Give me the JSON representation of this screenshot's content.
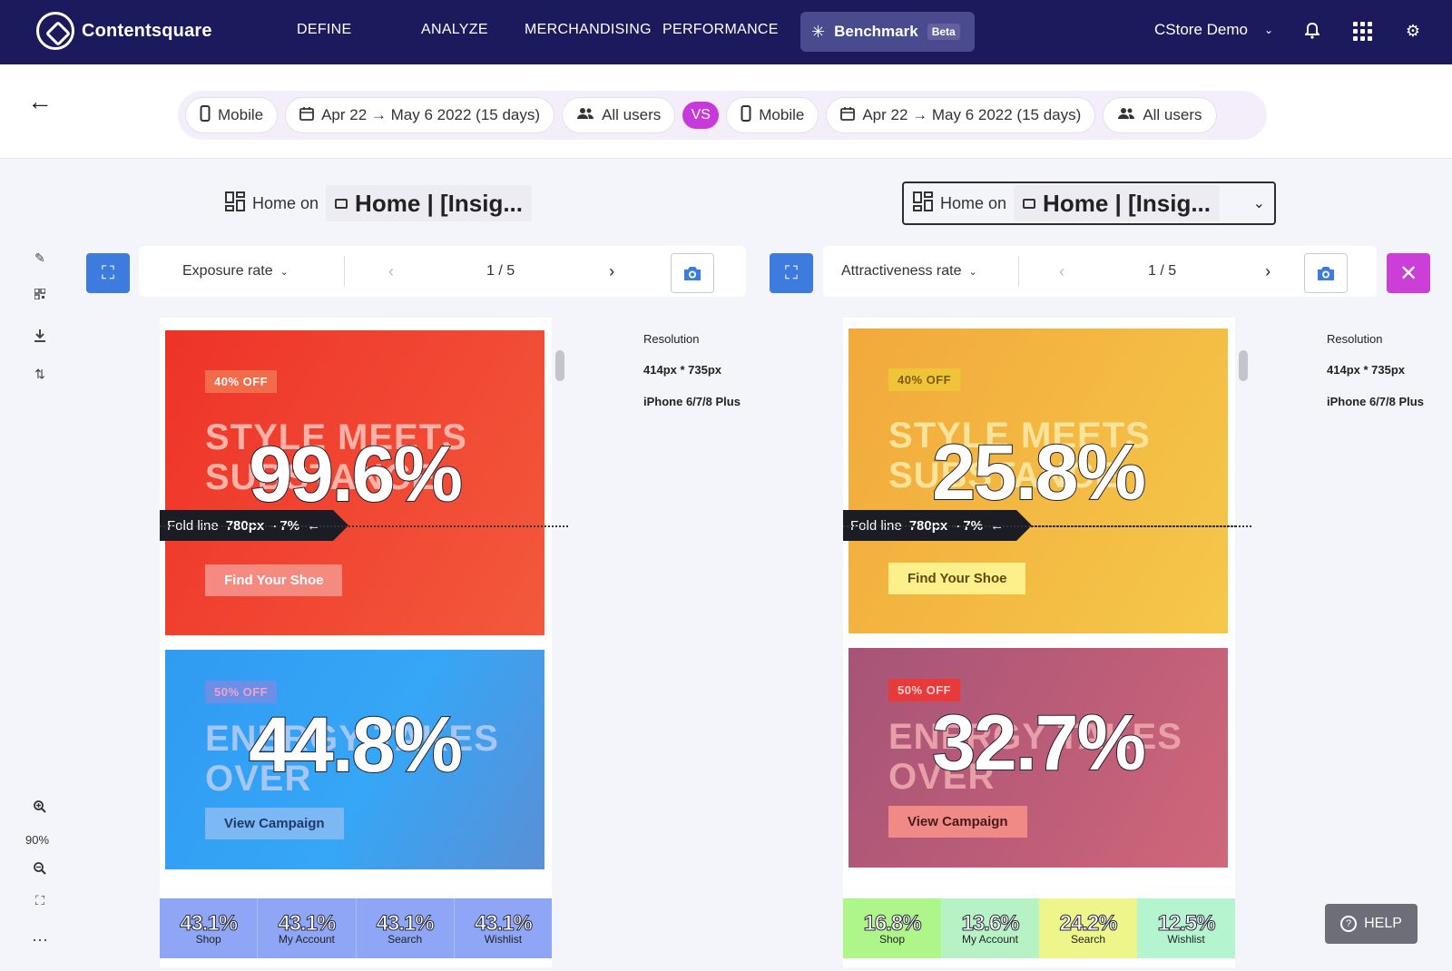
{
  "brand": {
    "name": "Contentsquare"
  },
  "nav": {
    "items": [
      "DEFINE",
      "ANALYZE",
      "MERCHANDISING",
      "PERFORMANCE"
    ],
    "benchmark": "Benchmark",
    "benchmark_badge": "Beta",
    "org": "CStore Demo"
  },
  "filters": {
    "left": {
      "device": "Mobile",
      "date": "Apr 22 → May 6 2022 (15 days)",
      "segment": "All users"
    },
    "vs": "VS",
    "right": {
      "device": "Mobile",
      "date": "Apr 22 → May 6 2022 (15 days)",
      "segment": "All users"
    }
  },
  "toolbar": {
    "zoom": "90%"
  },
  "panels": [
    {
      "home_on": "Home on",
      "page_title": "Home | [Insig...",
      "metric": "Exposure rate",
      "pager": "1 / 5",
      "resolution_label": "Resolution",
      "resolution_value": "414px * 735px",
      "device_model": "iPhone 6/7/8 Plus",
      "fold": {
        "label": "Fold line",
        "px": "780px",
        "pct": "- 7%"
      },
      "banner1": {
        "tag": "40% OFF",
        "headline1": "STYLE MEETS",
        "headline2": "SUBSTANCE",
        "cta": "Find Your Shoe",
        "rate": "99.6%"
      },
      "banner2": {
        "tag": "50% OFF",
        "headline1": "ENERGY TAKES",
        "headline2": "OVER",
        "cta": "View Campaign",
        "rate": "44.8%"
      },
      "nav": [
        {
          "pct": "43.1%",
          "label": "Shop"
        },
        {
          "pct": "43.1%",
          "label": "My Account"
        },
        {
          "pct": "43.1%",
          "label": "Search"
        },
        {
          "pct": "43.1%",
          "label": "Wishlist"
        }
      ]
    },
    {
      "home_on": "Home on",
      "page_title": "Home | [Insig...",
      "metric": "Attractiveness rate",
      "pager": "1 / 5",
      "resolution_label": "Resolution",
      "resolution_value": "414px * 735px",
      "device_model": "iPhone 6/7/8 Plus",
      "fold": {
        "label": "Fold line",
        "px": "780px",
        "pct": "- 7%"
      },
      "banner1": {
        "tag": "40% OFF",
        "headline1": "STYLE MEETS",
        "headline2": "SUBSTANCE",
        "cta": "Find Your Shoe",
        "rate": "25.8%"
      },
      "banner2": {
        "tag": "50% OFF",
        "headline1": "ENERGY TAKES",
        "headline2": "OVER",
        "cta": "View Campaign",
        "rate": "32.7%"
      },
      "nav": [
        {
          "pct": "16.8%",
          "label": "Shop"
        },
        {
          "pct": "13.6%",
          "label": "My Account"
        },
        {
          "pct": "24.2%",
          "label": "Search"
        },
        {
          "pct": "12.5%",
          "label": "Wishlist"
        }
      ]
    }
  ],
  "help": "HELP",
  "colors": {
    "nav_bg": "#1b1a5c",
    "accent_blue": "#3e7bde",
    "vs_pink": "#c73ad9",
    "left_banner1": "#ef3c2e",
    "left_banner2": "#2b9cf0",
    "left_nav": "#8ea6f5",
    "right_banner1": "#f4b93b",
    "right_banner2": "#b0587a",
    "right_nav": [
      "#aef58a",
      "#b6f2c4",
      "#eef58a",
      "#b4f5d0"
    ]
  },
  "icons": [
    "back-arrow-icon",
    "pencil-icon",
    "qr-icon",
    "download-icon",
    "sort-icon",
    "zoom-in-icon",
    "zoom-out-icon",
    "fullscreen-icon",
    "more-icon",
    "camera-icon",
    "close-icon",
    "bell-icon",
    "apps-grid-icon",
    "gear-icon",
    "phone-icon",
    "calendar-icon",
    "users-icon"
  ]
}
